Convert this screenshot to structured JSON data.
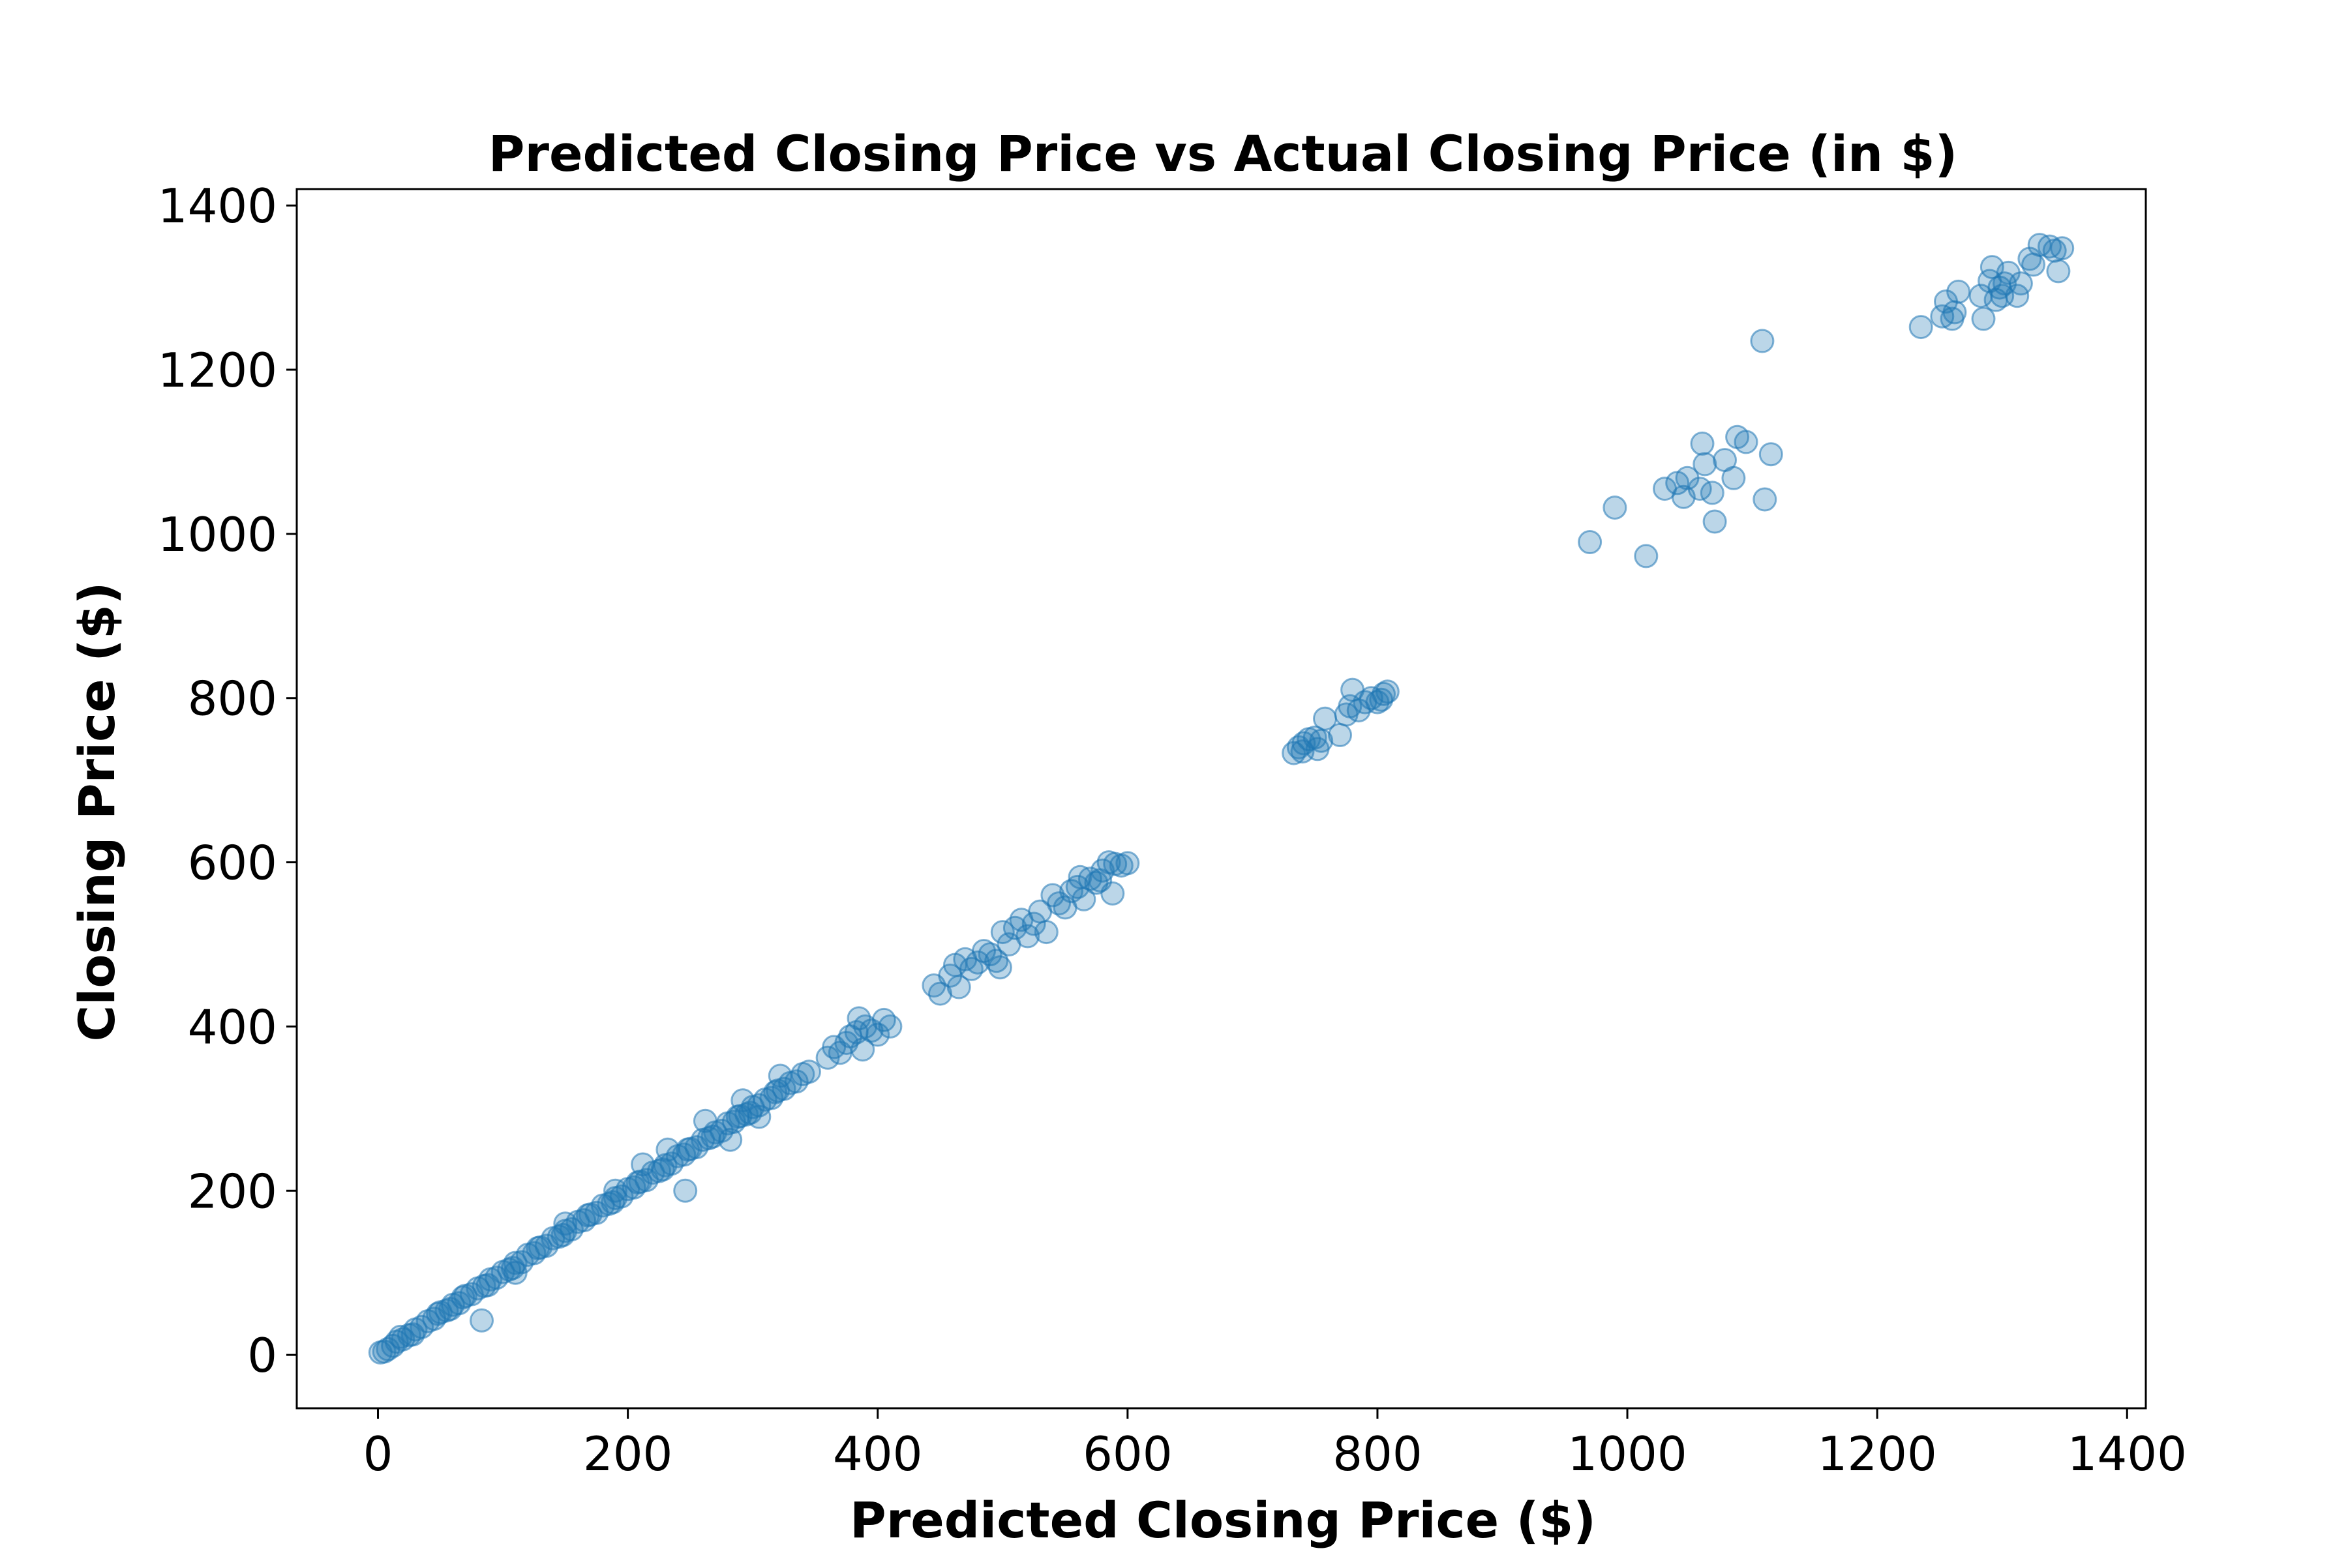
{
  "chart_data": {
    "type": "scatter",
    "title": "Predicted Closing Price vs Actual Closing Price (in $)",
    "xlabel": "Predicted Closing Price ($)",
    "ylabel": "Closing Price ($)",
    "xlim": [
      -65,
      1415
    ],
    "ylim": [
      -65,
      1420
    ],
    "xticks": [
      0,
      200,
      400,
      600,
      800,
      1000,
      1200,
      1400
    ],
    "yticks": [
      0,
      200,
      400,
      600,
      800,
      1000,
      1200,
      1400
    ],
    "grid": false,
    "legend": "none",
    "point_color": "#1f77b4",
    "point_opacity": 0.3,
    "series": [
      {
        "points": [
          [
            2,
            3
          ],
          [
            5,
            4
          ],
          [
            8,
            7
          ],
          [
            12,
            11
          ],
          [
            15,
            16
          ],
          [
            20,
            19
          ],
          [
            25,
            24
          ],
          [
            30,
            31
          ],
          [
            35,
            34
          ],
          [
            40,
            41
          ],
          [
            45,
            44
          ],
          [
            50,
            52
          ],
          [
            55,
            54
          ],
          [
            60,
            61
          ],
          [
            65,
            63
          ],
          [
            70,
            72
          ],
          [
            75,
            74
          ],
          [
            80,
            81
          ],
          [
            85,
            84
          ],
          [
            90,
            92
          ],
          [
            95,
            94
          ],
          [
            100,
            101
          ],
          [
            105,
            104
          ],
          [
            110,
            112
          ],
          [
            115,
            113
          ],
          [
            120,
            122
          ],
          [
            125,
            124
          ],
          [
            130,
            131
          ],
          [
            135,
            133
          ],
          [
            140,
            142
          ],
          [
            145,
            144
          ],
          [
            150,
            151
          ],
          [
            155,
            153
          ],
          [
            160,
            162
          ],
          [
            165,
            164
          ],
          [
            170,
            171
          ],
          [
            175,
            173
          ],
          [
            180,
            182
          ],
          [
            185,
            184
          ],
          [
            190,
            191
          ],
          [
            195,
            193
          ],
          [
            200,
            202
          ],
          [
            205,
            204
          ],
          [
            210,
            211
          ],
          [
            215,
            213
          ],
          [
            220,
            222
          ],
          [
            225,
            224
          ],
          [
            230,
            231
          ],
          [
            235,
            233
          ],
          [
            240,
            242
          ],
          [
            245,
            244
          ],
          [
            250,
            251
          ],
          [
            255,
            253
          ],
          [
            260,
            262
          ],
          [
            265,
            264
          ],
          [
            270,
            271
          ],
          [
            275,
            273
          ],
          [
            280,
            282
          ],
          [
            285,
            284
          ],
          [
            290,
            291
          ],
          [
            295,
            293
          ],
          [
            300,
            302
          ],
          [
            305,
            304
          ],
          [
            310,
            311
          ],
          [
            315,
            313
          ],
          [
            320,
            322
          ],
          [
            325,
            324
          ],
          [
            330,
            331
          ],
          [
            335,
            333
          ],
          [
            340,
            342
          ],
          [
            18,
            22
          ],
          [
            28,
            25
          ],
          [
            48,
            50
          ],
          [
            58,
            56
          ],
          [
            68,
            70
          ],
          [
            88,
            85
          ],
          [
            108,
            106
          ],
          [
            128,
            130
          ],
          [
            148,
            146
          ],
          [
            168,
            170
          ],
          [
            188,
            186
          ],
          [
            208,
            210
          ],
          [
            228,
            226
          ],
          [
            248,
            250
          ],
          [
            268,
            266
          ],
          [
            288,
            290
          ],
          [
            298,
            295
          ],
          [
            318,
            320
          ],
          [
            83,
            42
          ],
          [
            246,
            200
          ],
          [
            212,
            232
          ],
          [
            232,
            250
          ],
          [
            262,
            285
          ],
          [
            282,
            262
          ],
          [
            292,
            310
          ],
          [
            305,
            290
          ],
          [
            322,
            340
          ],
          [
            110,
            100
          ],
          [
            150,
            160
          ],
          [
            190,
            200
          ],
          [
            345,
            345
          ],
          [
            360,
            362
          ],
          [
            365,
            375
          ],
          [
            370,
            368
          ],
          [
            375,
            380
          ],
          [
            378,
            388
          ],
          [
            383,
            393
          ],
          [
            385,
            410
          ],
          [
            388,
            372
          ],
          [
            390,
            400
          ],
          [
            395,
            395
          ],
          [
            400,
            390
          ],
          [
            405,
            408
          ],
          [
            410,
            400
          ],
          [
            445,
            450
          ],
          [
            450,
            440
          ],
          [
            458,
            462
          ],
          [
            462,
            475
          ],
          [
            465,
            448
          ],
          [
            470,
            482
          ],
          [
            475,
            470
          ],
          [
            480,
            478
          ],
          [
            485,
            492
          ],
          [
            490,
            488
          ],
          [
            495,
            480
          ],
          [
            500,
            515
          ],
          [
            505,
            500
          ],
          [
            510,
            520
          ],
          [
            515,
            530
          ],
          [
            520,
            510
          ],
          [
            525,
            525
          ],
          [
            530,
            540
          ],
          [
            535,
            515
          ],
          [
            540,
            560
          ],
          [
            545,
            550
          ],
          [
            550,
            545
          ],
          [
            555,
            565
          ],
          [
            560,
            570
          ],
          [
            565,
            555
          ],
          [
            570,
            580
          ],
          [
            575,
            575
          ],
          [
            580,
            590
          ],
          [
            585,
            600
          ],
          [
            590,
            598
          ],
          [
            595,
            596
          ],
          [
            600,
            599
          ],
          [
            588,
            562
          ],
          [
            578,
            578
          ],
          [
            562,
            582
          ],
          [
            498,
            472
          ],
          [
            733,
            733
          ],
          [
            737,
            740
          ],
          [
            741,
            745
          ],
          [
            745,
            750
          ],
          [
            750,
            752
          ],
          [
            752,
            738
          ],
          [
            755,
            748
          ],
          [
            740,
            735
          ],
          [
            758,
            775
          ],
          [
            770,
            755
          ],
          [
            775,
            780
          ],
          [
            778,
            790
          ],
          [
            780,
            810
          ],
          [
            785,
            785
          ],
          [
            790,
            795
          ],
          [
            795,
            800
          ],
          [
            800,
            795
          ],
          [
            803,
            798
          ],
          [
            805,
            805
          ],
          [
            808,
            808
          ],
          [
            970,
            990
          ],
          [
            990,
            1032
          ],
          [
            1015,
            973
          ],
          [
            1030,
            1055
          ],
          [
            1040,
            1062
          ],
          [
            1045,
            1045
          ],
          [
            1048,
            1068
          ],
          [
            1058,
            1055
          ],
          [
            1060,
            1110
          ],
          [
            1062,
            1085
          ],
          [
            1068,
            1050
          ],
          [
            1070,
            1015
          ],
          [
            1078,
            1090
          ],
          [
            1085,
            1068
          ],
          [
            1088,
            1118
          ],
          [
            1095,
            1112
          ],
          [
            1108,
            1235
          ],
          [
            1110,
            1042
          ],
          [
            1115,
            1097
          ],
          [
            1235,
            1252
          ],
          [
            1252,
            1265
          ],
          [
            1255,
            1283
          ],
          [
            1260,
            1262
          ],
          [
            1262,
            1270
          ],
          [
            1265,
            1295
          ],
          [
            1283,
            1290
          ],
          [
            1285,
            1262
          ],
          [
            1290,
            1308
          ],
          [
            1292,
            1325
          ],
          [
            1295,
            1285
          ],
          [
            1298,
            1300
          ],
          [
            1300,
            1290
          ],
          [
            1302,
            1305
          ],
          [
            1305,
            1318
          ],
          [
            1312,
            1290
          ],
          [
            1315,
            1305
          ],
          [
            1322,
            1335
          ],
          [
            1325,
            1328
          ],
          [
            1330,
            1352
          ],
          [
            1338,
            1350
          ],
          [
            1342,
            1345
          ],
          [
            1345,
            1320
          ],
          [
            1348,
            1348
          ]
        ]
      }
    ]
  }
}
